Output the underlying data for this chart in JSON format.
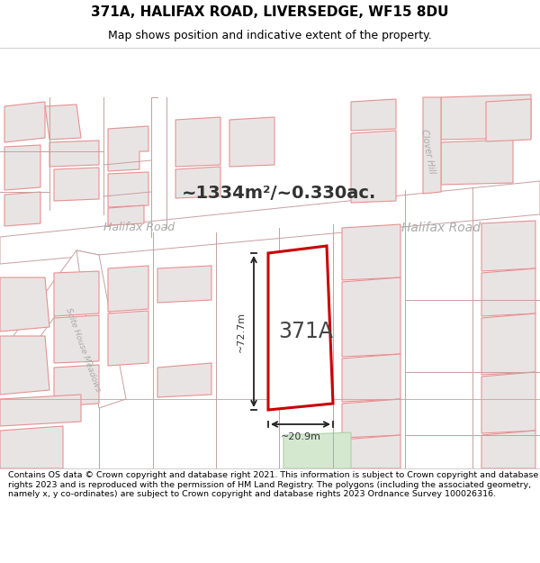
{
  "title_line1": "371A, HALIFAX ROAD, LIVERSEDGE, WF15 8DU",
  "title_line2": "Map shows position and indicative extent of the property.",
  "area_text": "~1334m²/~0.330ac.",
  "label_371A": "371A",
  "label_width": "~20.9m",
  "label_height": "~72.7m",
  "label_road1": "Halifax Road",
  "label_road2": "Halifax Road",
  "label_clover_hill": "Clover Hill",
  "label_scite": "Scite House Meadows",
  "footer_text": "Contains OS data © Crown copyright and database right 2021. This information is subject to Crown copyright and database rights 2023 and is reproduced with the permission of HM Land Registry. The polygons (including the associated geometry, namely x, y co-ordinates) are subject to Crown copyright and database rights 2023 Ordnance Survey 100026316.",
  "map_bg": "#f7f4f4",
  "building_fill": "#e8e4e4",
  "building_stroke": "#e89090",
  "property_fill": "#ffffff",
  "property_stroke": "#cc0000",
  "green_fill": "#d4e8d0",
  "green_stroke": "#b0d0a8",
  "road_line_color": "#c8a0a0",
  "dim_line_color": "#222222",
  "text_gray": "#aaaaaa",
  "text_dark": "#333333",
  "title_fs": 11,
  "subtitle_fs": 9,
  "area_fs": 14,
  "road_label_fs": 9,
  "dim_label_fs": 8,
  "property_label_fs": 17,
  "footer_fs": 6.8
}
